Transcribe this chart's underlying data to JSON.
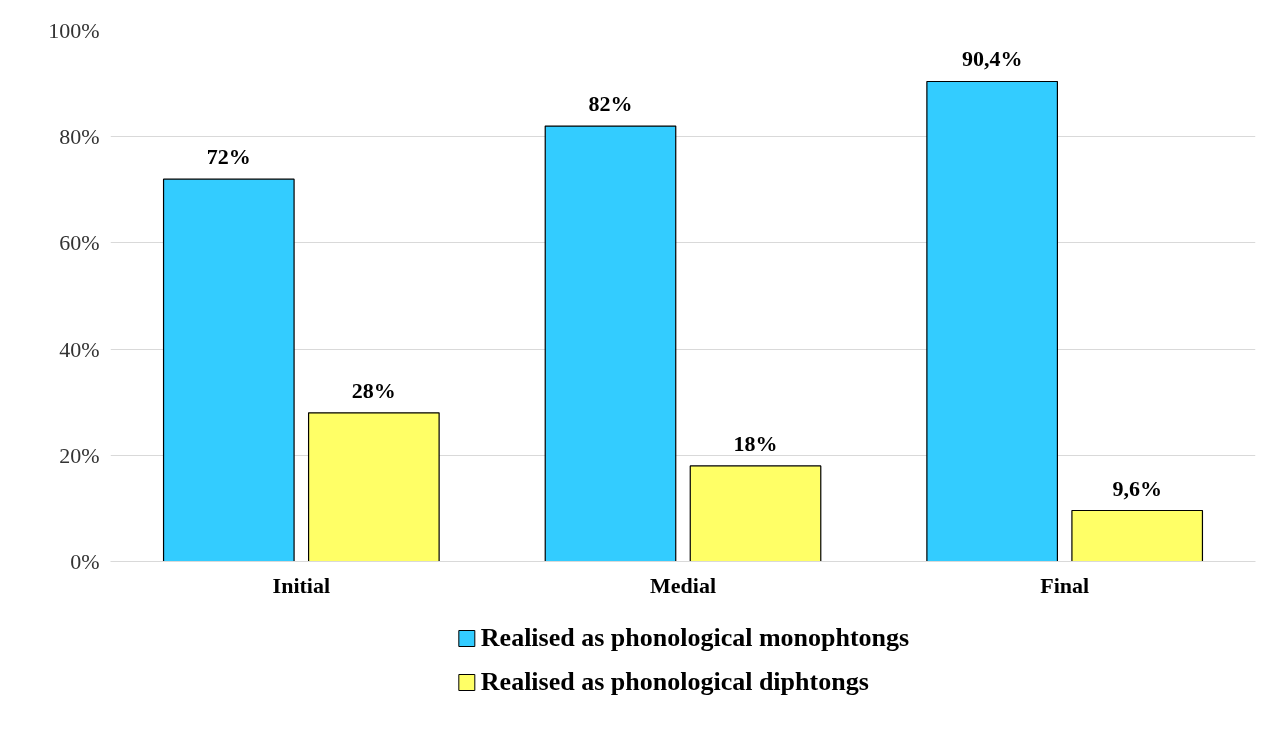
{
  "chart_data": {
    "type": "bar",
    "categories": [
      "Initial",
      "Medial",
      "Final"
    ],
    "series": [
      {
        "name": "Realised as phonological monophtongs",
        "color": "#33ccff",
        "values": [
          72,
          82,
          90.4
        ],
        "value_labels": [
          "72%",
          "82%",
          "90,4%"
        ]
      },
      {
        "name": "Realised as phonological diphtongs",
        "color": "#ffff66",
        "values": [
          28,
          18,
          9.6
        ],
        "value_labels": [
          "28%",
          "18%",
          "9,6%"
        ]
      }
    ],
    "ylim": [
      0,
      100
    ],
    "yticks": [
      {
        "value": 0,
        "label": "0%"
      },
      {
        "value": 20,
        "label": "20%"
      },
      {
        "value": 40,
        "label": "40%"
      },
      {
        "value": 60,
        "label": "60%"
      },
      {
        "value": 80,
        "label": "80%"
      },
      {
        "value": 100,
        "label": "100%"
      }
    ],
    "grid": "y",
    "legend": "bottom"
  }
}
